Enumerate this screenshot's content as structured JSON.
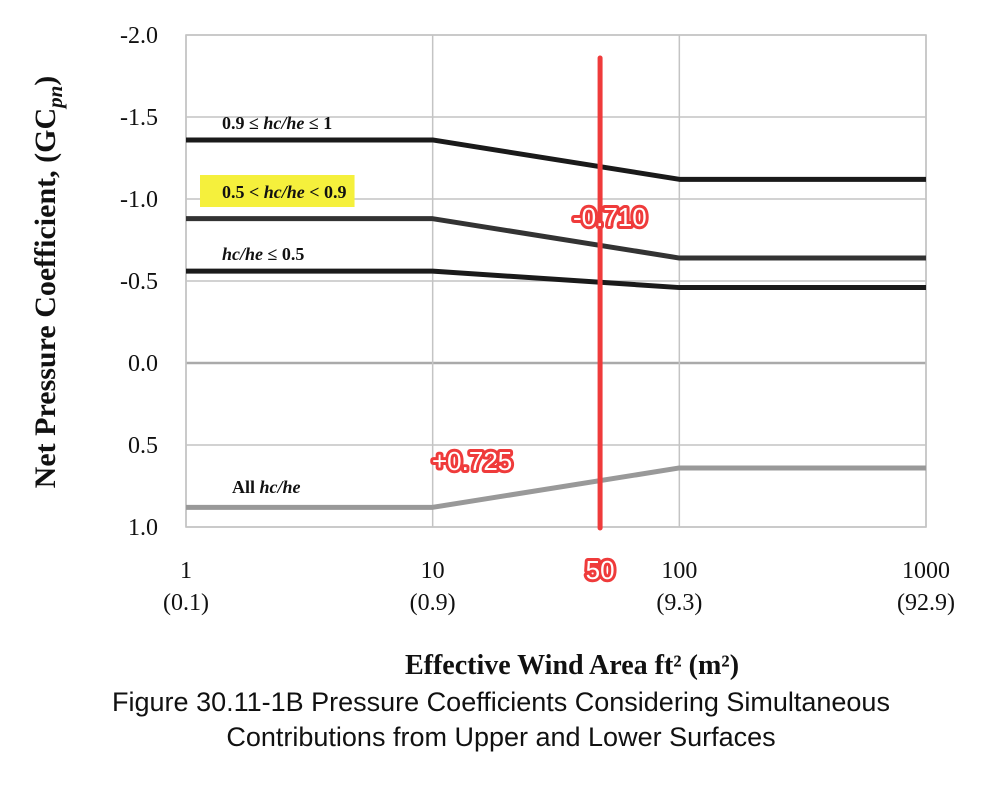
{
  "caption": {
    "line1": "Figure 30.11-1B Pressure Coefficients Considering Simultaneous",
    "line2": "Contributions from Upper and Lower Surfaces"
  },
  "chart_data": {
    "type": "line",
    "title": "",
    "xlabel": "Effective Wind Area ft² (m²)",
    "ylabel": "Net Pressure Coefficient, (GC",
    "ylabel_sub": "pn",
    "ylabel_close": ")",
    "x_scale": "log",
    "xlim": [
      1,
      1000
    ],
    "ylim": [
      -2.0,
      1.0
    ],
    "y_reversed": true,
    "grid": true,
    "x_ticks": [
      {
        "value": 1,
        "label": "1",
        "sublabel": "(0.1)"
      },
      {
        "value": 10,
        "label": "10",
        "sublabel": "(0.9)"
      },
      {
        "value": 100,
        "label": "100",
        "sublabel": "(9.3)"
      },
      {
        "value": 1000,
        "label": "1000",
        "sublabel": "(92.9)"
      }
    ],
    "y_ticks": [
      {
        "value": -2.0,
        "label": "-2.0"
      },
      {
        "value": -1.5,
        "label": "-1.5"
      },
      {
        "value": -1.0,
        "label": "-1.0"
      },
      {
        "value": -0.5,
        "label": "-0.5"
      },
      {
        "value": 0.0,
        "label": "0.0"
      },
      {
        "value": 0.5,
        "label": "0.5"
      },
      {
        "value": 1.0,
        "label": "1.0"
      }
    ],
    "series": [
      {
        "name": "0.9 ≤  hc/he ≤ 1",
        "color": "#1a1a1a",
        "highlight": false,
        "x": [
          1,
          10,
          100,
          1000
        ],
        "y": [
          -1.36,
          -1.36,
          -1.12,
          -1.12
        ]
      },
      {
        "name": "0.5  <  hc/he  < 0.9",
        "color": "#333333",
        "highlight": true,
        "highlight_color": "#f5f03c",
        "x": [
          1,
          10,
          100,
          1000
        ],
        "y": [
          -0.88,
          -0.88,
          -0.64,
          -0.64
        ]
      },
      {
        "name": "hc/he ≤ 0.5",
        "color": "#1a1a1a",
        "highlight": false,
        "x": [
          1,
          10,
          100,
          1000
        ],
        "y": [
          -0.56,
          -0.56,
          -0.46,
          -0.46
        ]
      },
      {
        "name": "All hc/he",
        "color": "#999999",
        "highlight": false,
        "x": [
          1,
          10,
          100,
          1000
        ],
        "y": [
          0.88,
          0.88,
          0.64,
          0.64
        ]
      }
    ],
    "annotations": {
      "vertical_line": {
        "x": 50,
        "color": "#ef3b3b",
        "label": "50"
      },
      "callouts": [
        {
          "text": "-0.710",
          "x": 50,
          "y": -0.71
        },
        {
          "text": "+0.725",
          "x": 50,
          "y": 0.725
        }
      ]
    }
  }
}
